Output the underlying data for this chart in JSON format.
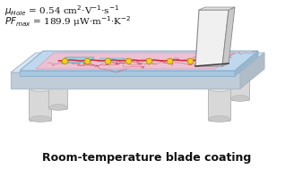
{
  "title": "Room-temperature blade coating",
  "title_fontsize": 9,
  "title_fontweight": "bold",
  "bg_color": "#ffffff",
  "text1": "$\\mu_{\\mathit{Hole}}$ = 0.54 cm$^{2}$·V$^{-1}$·s$^{-1}$",
  "text2": "$\\mathit{PF}_{\\mathit{max}}$ = 189.9 μW·m$^{-1}$·K$^{-2}$",
  "text_fontsize": 7.5,
  "table_top_color": "#dce8f4",
  "table_top_edge": "#b0bcc8",
  "table_front_color": "#c0cdd8",
  "table_right_color": "#b0bcc8",
  "table_rim_top": "#e8eef4",
  "leg_color": "#d8d8d8",
  "leg_edge": "#b8b8b8",
  "substrate_color": "#c8dff0",
  "substrate_edge": "#a0c0d8",
  "film_color": "#f0c8d8",
  "film_edge": "#d8a0b8",
  "blade_face": "#f2f2f2",
  "blade_side": "#d0d0d0",
  "blade_top_c": "#e0e0e0",
  "blade_edge_c": "#909090",
  "chain_color": "#cc3333",
  "sulfur_color": "#f0d020",
  "sulfur_edge": "#b89000",
  "pi_color": "#80d0e8",
  "pi_edge": "#40a8c0"
}
